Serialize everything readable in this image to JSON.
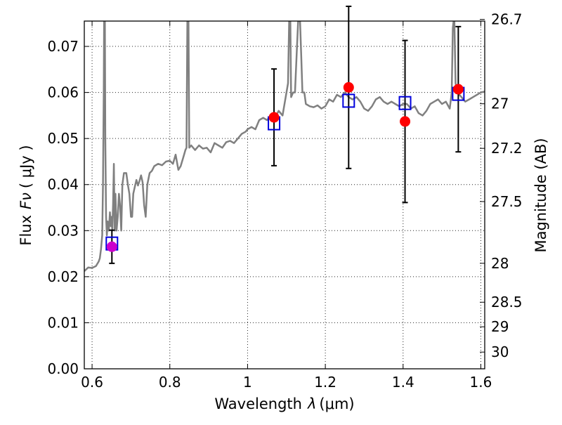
{
  "chart_data": {
    "type": "scatter",
    "xlabel_text": "Wavelength",
    "xlabel_symbol": "λ",
    "xlabel_unit": "(μm)",
    "ylabel_text": "Flux",
    "ylabel_symbol": "Fν",
    "ylabel_unit": "( μJy )",
    "y2label": "Magnitude (AB)",
    "xlim": [
      0.58,
      1.61
    ],
    "ylim": [
      0.0,
      0.0755
    ],
    "grid": true,
    "x_ticks": [
      0.6,
      0.8,
      1.0,
      1.2,
      1.4,
      1.6
    ],
    "x_tick_labels": [
      "0.6",
      "0.8",
      "1",
      "1.2",
      "1.4",
      "1.6"
    ],
    "y_ticks": [
      0.0,
      0.01,
      0.02,
      0.03,
      0.04,
      0.05,
      0.06,
      0.07
    ],
    "y_tick_labels": [
      "0.00",
      "0.01",
      "0.02",
      "0.03",
      "0.04",
      "0.05",
      "0.06",
      "0.07"
    ],
    "mag_ticks": [
      26.7,
      27.0,
      27.2,
      27.5,
      28.0,
      28.5,
      29.0,
      30.0
    ],
    "mag_tick_labels": [
      "26.7",
      "27",
      "27.2",
      "27.5",
      "28",
      "28.5",
      "29",
      "30"
    ],
    "colors": {
      "spectrum": "#808080",
      "model": "#0000dd",
      "obs": "#ff0000",
      "obs_first": "#cc00cc",
      "errorbar": "#000000"
    },
    "observations": [
      {
        "x": 0.651,
        "y": 0.0265,
        "err": 0.0036
      },
      {
        "x": 1.068,
        "y": 0.0546,
        "err": 0.0105
      },
      {
        "x": 1.26,
        "y": 0.0611,
        "err": 0.0176
      },
      {
        "x": 1.405,
        "y": 0.0537,
        "err": 0.0176
      },
      {
        "x": 1.542,
        "y": 0.0607,
        "err": 0.0136
      }
    ],
    "model_points": [
      {
        "x": 0.651,
        "y": 0.0272
      },
      {
        "x": 1.068,
        "y": 0.0533
      },
      {
        "x": 1.26,
        "y": 0.0582
      },
      {
        "x": 1.405,
        "y": 0.0577
      },
      {
        "x": 1.542,
        "y": 0.0597
      }
    ],
    "spectrum": [
      [
        0.58,
        0.0212
      ],
      [
        0.59,
        0.022
      ],
      [
        0.6,
        0.0219
      ],
      [
        0.61,
        0.0223
      ],
      [
        0.617,
        0.0233
      ],
      [
        0.62,
        0.024
      ],
      [
        0.623,
        0.026
      ],
      [
        0.626,
        0.029
      ],
      [
        0.628,
        0.04
      ],
      [
        0.63,
        0.06
      ],
      [
        0.631,
        0.0755
      ],
      [
        0.633,
        0.0755
      ],
      [
        0.634,
        0.05
      ],
      [
        0.636,
        0.033
      ],
      [
        0.638,
        0.029
      ],
      [
        0.64,
        0.032
      ],
      [
        0.643,
        0.03
      ],
      [
        0.646,
        0.034
      ],
      [
        0.648,
        0.031
      ],
      [
        0.65,
        0.033
      ],
      [
        0.652,
        0.03
      ],
      [
        0.654,
        0.036
      ],
      [
        0.656,
        0.0445
      ],
      [
        0.658,
        0.03
      ],
      [
        0.66,
        0.038
      ],
      [
        0.663,
        0.03
      ],
      [
        0.666,
        0.033
      ],
      [
        0.669,
        0.038
      ],
      [
        0.672,
        0.0355
      ],
      [
        0.675,
        0.03
      ],
      [
        0.678,
        0.04
      ],
      [
        0.682,
        0.0425
      ],
      [
        0.688,
        0.0425
      ],
      [
        0.692,
        0.04
      ],
      [
        0.696,
        0.038
      ],
      [
        0.7,
        0.033
      ],
      [
        0.703,
        0.033
      ],
      [
        0.706,
        0.038
      ],
      [
        0.71,
        0.0395
      ],
      [
        0.714,
        0.041
      ],
      [
        0.718,
        0.0398
      ],
      [
        0.722,
        0.0408
      ],
      [
        0.726,
        0.042
      ],
      [
        0.73,
        0.0405
      ],
      [
        0.734,
        0.0355
      ],
      [
        0.738,
        0.033
      ],
      [
        0.742,
        0.04
      ],
      [
        0.748,
        0.0425
      ],
      [
        0.754,
        0.043
      ],
      [
        0.76,
        0.044
      ],
      [
        0.77,
        0.0445
      ],
      [
        0.78,
        0.0442
      ],
      [
        0.79,
        0.045
      ],
      [
        0.8,
        0.0452
      ],
      [
        0.808,
        0.0445
      ],
      [
        0.815,
        0.0465
      ],
      [
        0.822,
        0.0432
      ],
      [
        0.828,
        0.044
      ],
      [
        0.835,
        0.046
      ],
      [
        0.84,
        0.0475
      ],
      [
        0.843,
        0.048
      ],
      [
        0.845,
        0.0755
      ],
      [
        0.848,
        0.0755
      ],
      [
        0.85,
        0.048
      ],
      [
        0.855,
        0.0485
      ],
      [
        0.865,
        0.0475
      ],
      [
        0.875,
        0.0485
      ],
      [
        0.885,
        0.0478
      ],
      [
        0.895,
        0.048
      ],
      [
        0.905,
        0.047
      ],
      [
        0.915,
        0.049
      ],
      [
        0.925,
        0.0485
      ],
      [
        0.935,
        0.048
      ],
      [
        0.945,
        0.0492
      ],
      [
        0.955,
        0.0495
      ],
      [
        0.965,
        0.049
      ],
      [
        0.975,
        0.05
      ],
      [
        0.985,
        0.051
      ],
      [
        0.995,
        0.0515
      ],
      [
        1.0,
        0.052
      ],
      [
        1.01,
        0.0525
      ],
      [
        1.02,
        0.052
      ],
      [
        1.03,
        0.054
      ],
      [
        1.04,
        0.0545
      ],
      [
        1.05,
        0.054
      ],
      [
        1.06,
        0.055
      ],
      [
        1.07,
        0.0545
      ],
      [
        1.08,
        0.056
      ],
      [
        1.09,
        0.055
      ],
      [
        1.1,
        0.06
      ],
      [
        1.104,
        0.062
      ],
      [
        1.107,
        0.0755
      ],
      [
        1.11,
        0.0755
      ],
      [
        1.112,
        0.059
      ],
      [
        1.117,
        0.06
      ],
      [
        1.122,
        0.06
      ],
      [
        1.126,
        0.068
      ],
      [
        1.13,
        0.0755
      ],
      [
        1.135,
        0.0755
      ],
      [
        1.138,
        0.068
      ],
      [
        1.141,
        0.06
      ],
      [
        1.146,
        0.06
      ],
      [
        1.15,
        0.0575
      ],
      [
        1.16,
        0.057
      ],
      [
        1.17,
        0.0568
      ],
      [
        1.18,
        0.0572
      ],
      [
        1.19,
        0.0565
      ],
      [
        1.2,
        0.057
      ],
      [
        1.21,
        0.0585
      ],
      [
        1.22,
        0.058
      ],
      [
        1.23,
        0.0595
      ],
      [
        1.24,
        0.059
      ],
      [
        1.25,
        0.06
      ],
      [
        1.26,
        0.059
      ],
      [
        1.27,
        0.0585
      ],
      [
        1.28,
        0.059
      ],
      [
        1.29,
        0.058
      ],
      [
        1.3,
        0.0565
      ],
      [
        1.31,
        0.056
      ],
      [
        1.32,
        0.057
      ],
      [
        1.33,
        0.0585
      ],
      [
        1.34,
        0.059
      ],
      [
        1.35,
        0.058
      ],
      [
        1.36,
        0.0575
      ],
      [
        1.37,
        0.058
      ],
      [
        1.38,
        0.0575
      ],
      [
        1.39,
        0.057
      ],
      [
        1.4,
        0.0575
      ],
      [
        1.41,
        0.0575
      ],
      [
        1.42,
        0.0565
      ],
      [
        1.43,
        0.057
      ],
      [
        1.44,
        0.0555
      ],
      [
        1.45,
        0.055
      ],
      [
        1.46,
        0.056
      ],
      [
        1.47,
        0.0575
      ],
      [
        1.48,
        0.058
      ],
      [
        1.49,
        0.0585
      ],
      [
        1.5,
        0.0575
      ],
      [
        1.51,
        0.058
      ],
      [
        1.52,
        0.0565
      ],
      [
        1.525,
        0.06
      ],
      [
        1.528,
        0.074
      ],
      [
        1.53,
        0.0755
      ],
      [
        1.532,
        0.0755
      ],
      [
        1.535,
        0.062
      ],
      [
        1.54,
        0.06
      ],
      [
        1.55,
        0.059
      ],
      [
        1.56,
        0.058
      ],
      [
        1.57,
        0.0585
      ],
      [
        1.58,
        0.059
      ],
      [
        1.59,
        0.0595
      ],
      [
        1.6,
        0.06
      ],
      [
        1.61,
        0.0602
      ]
    ]
  }
}
